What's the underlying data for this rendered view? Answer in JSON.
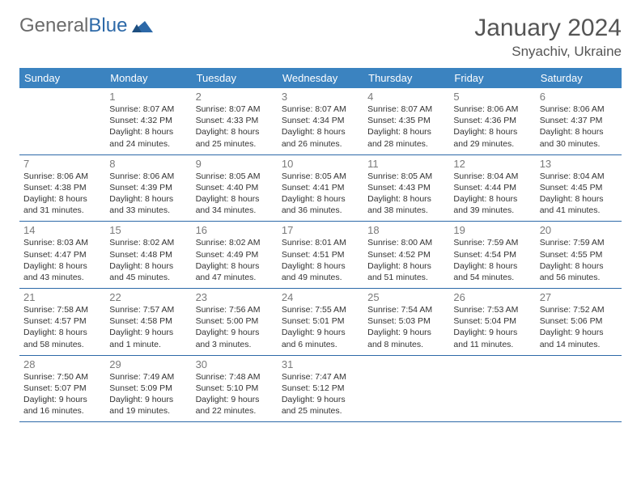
{
  "brand": {
    "part1": "General",
    "part2": "Blue"
  },
  "title": "January 2024",
  "location": "Snyachiv, Ukraine",
  "colors": {
    "header_bg": "#3b83c0",
    "header_text": "#ffffff",
    "border": "#2d69a8",
    "daynum": "#7a7a7a",
    "body_text": "#333333",
    "title_text": "#555555",
    "logo_gray": "#6b6b6b",
    "logo_blue": "#2d69a8"
  },
  "weekdays": [
    "Sunday",
    "Monday",
    "Tuesday",
    "Wednesday",
    "Thursday",
    "Friday",
    "Saturday"
  ],
  "weeks": [
    [
      null,
      {
        "n": "1",
        "sr": "8:07 AM",
        "ss": "4:32 PM",
        "dl": "8 hours and 24 minutes."
      },
      {
        "n": "2",
        "sr": "8:07 AM",
        "ss": "4:33 PM",
        "dl": "8 hours and 25 minutes."
      },
      {
        "n": "3",
        "sr": "8:07 AM",
        "ss": "4:34 PM",
        "dl": "8 hours and 26 minutes."
      },
      {
        "n": "4",
        "sr": "8:07 AM",
        "ss": "4:35 PM",
        "dl": "8 hours and 28 minutes."
      },
      {
        "n": "5",
        "sr": "8:06 AM",
        "ss": "4:36 PM",
        "dl": "8 hours and 29 minutes."
      },
      {
        "n": "6",
        "sr": "8:06 AM",
        "ss": "4:37 PM",
        "dl": "8 hours and 30 minutes."
      }
    ],
    [
      {
        "n": "7",
        "sr": "8:06 AM",
        "ss": "4:38 PM",
        "dl": "8 hours and 31 minutes."
      },
      {
        "n": "8",
        "sr": "8:06 AM",
        "ss": "4:39 PM",
        "dl": "8 hours and 33 minutes."
      },
      {
        "n": "9",
        "sr": "8:05 AM",
        "ss": "4:40 PM",
        "dl": "8 hours and 34 minutes."
      },
      {
        "n": "10",
        "sr": "8:05 AM",
        "ss": "4:41 PM",
        "dl": "8 hours and 36 minutes."
      },
      {
        "n": "11",
        "sr": "8:05 AM",
        "ss": "4:43 PM",
        "dl": "8 hours and 38 minutes."
      },
      {
        "n": "12",
        "sr": "8:04 AM",
        "ss": "4:44 PM",
        "dl": "8 hours and 39 minutes."
      },
      {
        "n": "13",
        "sr": "8:04 AM",
        "ss": "4:45 PM",
        "dl": "8 hours and 41 minutes."
      }
    ],
    [
      {
        "n": "14",
        "sr": "8:03 AM",
        "ss": "4:47 PM",
        "dl": "8 hours and 43 minutes."
      },
      {
        "n": "15",
        "sr": "8:02 AM",
        "ss": "4:48 PM",
        "dl": "8 hours and 45 minutes."
      },
      {
        "n": "16",
        "sr": "8:02 AM",
        "ss": "4:49 PM",
        "dl": "8 hours and 47 minutes."
      },
      {
        "n": "17",
        "sr": "8:01 AM",
        "ss": "4:51 PM",
        "dl": "8 hours and 49 minutes."
      },
      {
        "n": "18",
        "sr": "8:00 AM",
        "ss": "4:52 PM",
        "dl": "8 hours and 51 minutes."
      },
      {
        "n": "19",
        "sr": "7:59 AM",
        "ss": "4:54 PM",
        "dl": "8 hours and 54 minutes."
      },
      {
        "n": "20",
        "sr": "7:59 AM",
        "ss": "4:55 PM",
        "dl": "8 hours and 56 minutes."
      }
    ],
    [
      {
        "n": "21",
        "sr": "7:58 AM",
        "ss": "4:57 PM",
        "dl": "8 hours and 58 minutes."
      },
      {
        "n": "22",
        "sr": "7:57 AM",
        "ss": "4:58 PM",
        "dl": "9 hours and 1 minute."
      },
      {
        "n": "23",
        "sr": "7:56 AM",
        "ss": "5:00 PM",
        "dl": "9 hours and 3 minutes."
      },
      {
        "n": "24",
        "sr": "7:55 AM",
        "ss": "5:01 PM",
        "dl": "9 hours and 6 minutes."
      },
      {
        "n": "25",
        "sr": "7:54 AM",
        "ss": "5:03 PM",
        "dl": "9 hours and 8 minutes."
      },
      {
        "n": "26",
        "sr": "7:53 AM",
        "ss": "5:04 PM",
        "dl": "9 hours and 11 minutes."
      },
      {
        "n": "27",
        "sr": "7:52 AM",
        "ss": "5:06 PM",
        "dl": "9 hours and 14 minutes."
      }
    ],
    [
      {
        "n": "28",
        "sr": "7:50 AM",
        "ss": "5:07 PM",
        "dl": "9 hours and 16 minutes."
      },
      {
        "n": "29",
        "sr": "7:49 AM",
        "ss": "5:09 PM",
        "dl": "9 hours and 19 minutes."
      },
      {
        "n": "30",
        "sr": "7:48 AM",
        "ss": "5:10 PM",
        "dl": "9 hours and 22 minutes."
      },
      {
        "n": "31",
        "sr": "7:47 AM",
        "ss": "5:12 PM",
        "dl": "9 hours and 25 minutes."
      },
      null,
      null,
      null
    ]
  ],
  "labels": {
    "sunrise": "Sunrise: ",
    "sunset": "Sunset: ",
    "daylight": "Daylight: "
  }
}
